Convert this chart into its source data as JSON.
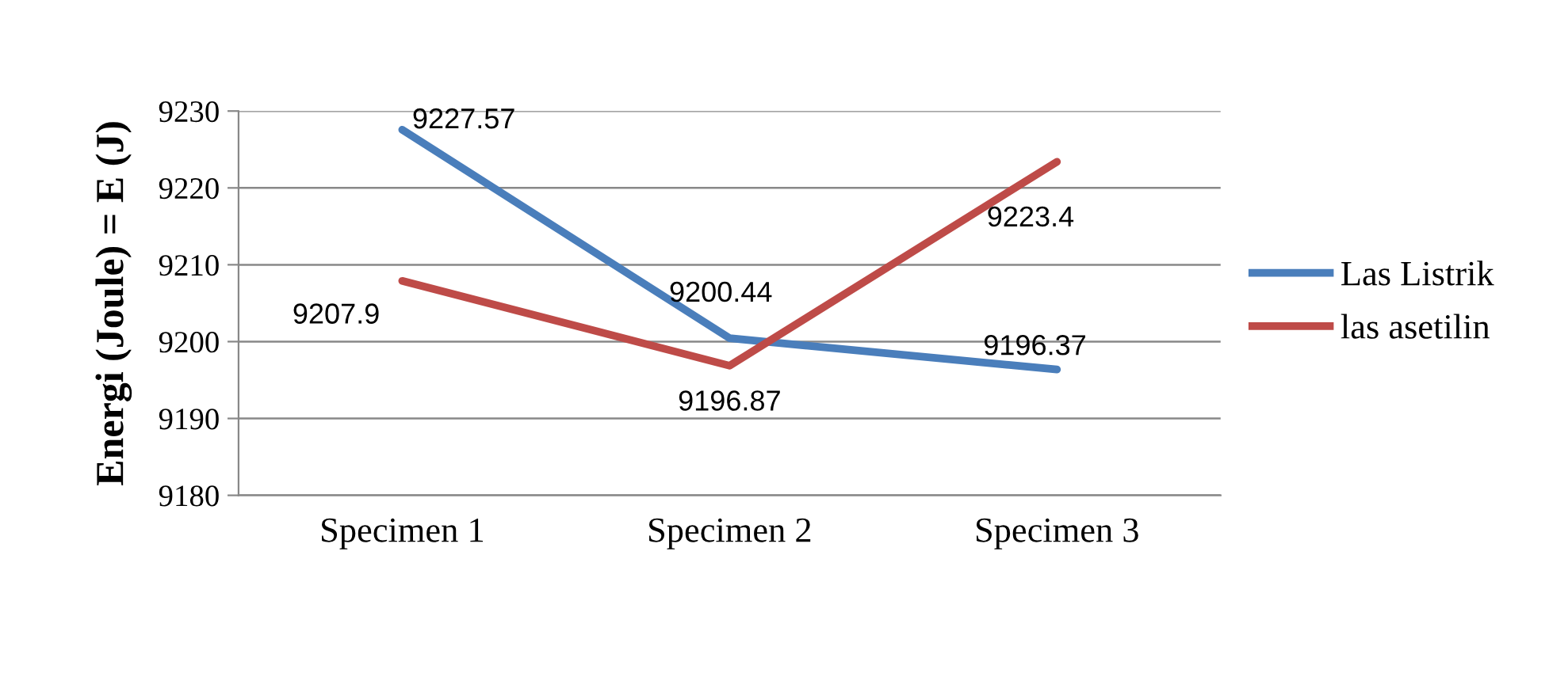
{
  "chart_data": {
    "type": "line",
    "ylabel": "Energi (Joule) = E (J)",
    "categories": [
      "Specimen 1",
      "Specimen 2",
      "Specimen 3"
    ],
    "series": [
      {
        "name": "Las Listrik",
        "color": "#4a7ebb",
        "values": [
          9227.57,
          9200.44,
          9196.37
        ]
      },
      {
        "name": "las asetilin",
        "color": "#be4b48",
        "values": [
          9207.9,
          9196.87,
          9223.4
        ]
      }
    ],
    "ylim": [
      9180,
      9230
    ],
    "yticks": [
      9180,
      9190,
      9200,
      9210,
      9220,
      9230
    ],
    "grid": "y",
    "legend": "right",
    "data_labels": true,
    "marker": "none",
    "line_style": "solid"
  }
}
